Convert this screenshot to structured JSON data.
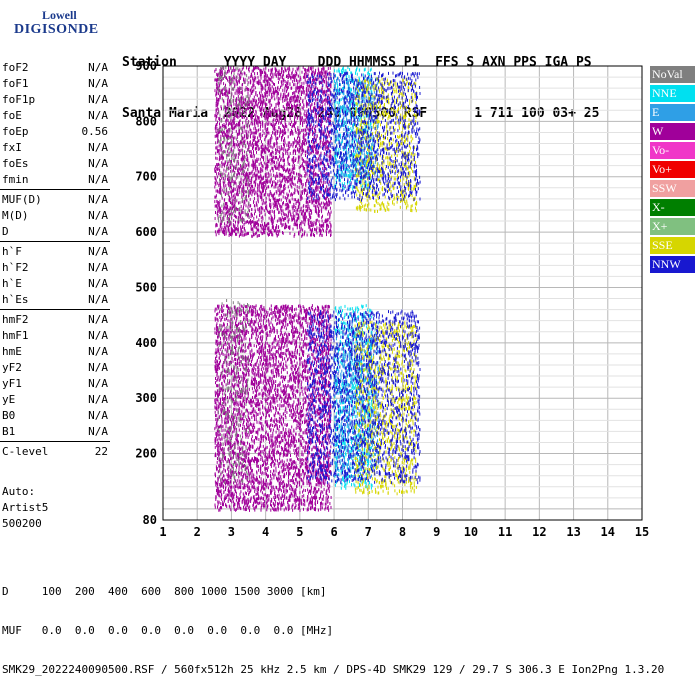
{
  "logo": {
    "line1": "Lowell",
    "line2": "DIGISONDE"
  },
  "header": {
    "line1": "Station      YYYY DAY    DDD HHMMSS P1  FFS S AXN PPS IGA PS",
    "line2": "Santa Maria  2022 Aug28  240 090500 RSF      1 711 100 03+ 25"
  },
  "params": [
    {
      "name": "foF2",
      "value": "N/A"
    },
    {
      "name": "foF1",
      "value": "N/A"
    },
    {
      "name": "foF1p",
      "value": "N/A"
    },
    {
      "name": "foE",
      "value": "N/A"
    },
    {
      "name": "foEp",
      "value": "0.56"
    },
    {
      "name": "fxI",
      "value": "N/A"
    },
    {
      "name": "foEs",
      "value": "N/A"
    },
    {
      "name": "fmin",
      "value": "N/A"
    },
    {
      "name": "MUF(D)",
      "value": "N/A"
    },
    {
      "name": "M(D)",
      "value": "N/A"
    },
    {
      "name": "D",
      "value": "N/A"
    },
    {
      "name": "h`F",
      "value": "N/A"
    },
    {
      "name": "h`F2",
      "value": "N/A"
    },
    {
      "name": "h`E",
      "value": "N/A"
    },
    {
      "name": "h`Es",
      "value": "N/A"
    },
    {
      "name": "hmF2",
      "value": "N/A"
    },
    {
      "name": "hmF1",
      "value": "N/A"
    },
    {
      "name": "hmE",
      "value": "N/A"
    },
    {
      "name": "yF2",
      "value": "N/A"
    },
    {
      "name": "yF1",
      "value": "N/A"
    },
    {
      "name": "yE",
      "value": "N/A"
    },
    {
      "name": "B0",
      "value": "N/A"
    },
    {
      "name": "B1",
      "value": "N/A"
    },
    {
      "name": "C-level",
      "value": "22"
    }
  ],
  "auto": {
    "line1": "Auto:",
    "line2": "Artist5",
    "line3": "500200"
  },
  "legend": [
    {
      "label": "NoVal",
      "color": "#7f7f7f"
    },
    {
      "label": "NNE",
      "color": "#00e0f0"
    },
    {
      "label": "E",
      "color": "#2f9fe6"
    },
    {
      "label": "W",
      "color": "#a0009a"
    },
    {
      "label": "Vo-",
      "color": "#f036c8"
    },
    {
      "label": "Vo+",
      "color": "#f00000"
    },
    {
      "label": "SSW",
      "color": "#f0a0a0"
    },
    {
      "label": "X-",
      "color": "#007f00"
    },
    {
      "label": "X+",
      "color": "#80c080"
    },
    {
      "label": "SSE",
      "color": "#d6d600"
    },
    {
      "label": "NNW",
      "color": "#1818d0"
    }
  ],
  "footer": {
    "line1": "D     100  200  400  600  800 1000 1500 3000 [km]",
    "line2": "MUF   0.0  0.0  0.0  0.0  0.0  0.0  0.0  0.0 [MHz]",
    "line3": "SMK29_2022240090500.RSF / 560fx512h 25 kHz 2.5 km / DPS-4D SMK29 129 / 29.7 S 306.3 E Ion2Png 1.3.20"
  },
  "chart_data": {
    "type": "scatter",
    "title": "",
    "xlabel": "",
    "ylabel": "",
    "xlim": [
      1,
      15
    ],
    "ylim": [
      80,
      900
    ],
    "xticks": [
      1,
      2,
      3,
      4,
      5,
      6,
      7,
      8,
      9,
      10,
      11,
      12,
      13,
      14,
      15
    ],
    "yticks": [
      80,
      200,
      300,
      400,
      500,
      600,
      700,
      800,
      900
    ],
    "grid": true,
    "legend_position": "right",
    "series": [
      {
        "name": "W",
        "color": "#a0009a",
        "bands": [
          {
            "x": [
              2.5,
              5.9
            ],
            "y": [
              100,
              470
            ]
          },
          {
            "x": [
              2.5,
              5.9
            ],
            "y": [
              595,
              900
            ]
          }
        ]
      },
      {
        "name": "NNE",
        "color": "#00e0f0",
        "bands": [
          {
            "x": [
              6.0,
              7.1
            ],
            "y": [
              140,
              470
            ]
          },
          {
            "x": [
              6.0,
              7.1
            ],
            "y": [
              680,
              900
            ]
          }
        ]
      },
      {
        "name": "E",
        "color": "#2f9fe6",
        "bands": [
          {
            "x": [
              6.0,
              7.3
            ],
            "y": [
              160,
              440
            ]
          },
          {
            "x": [
              6.0,
              7.3
            ],
            "y": [
              700,
              880
            ]
          }
        ]
      },
      {
        "name": "SSE",
        "color": "#d6d600",
        "bands": [
          {
            "x": [
              6.6,
              8.4
            ],
            "y": [
              130,
              440
            ]
          },
          {
            "x": [
              6.6,
              8.4
            ],
            "y": [
              640,
              880
            ]
          }
        ]
      },
      {
        "name": "NNW",
        "color": "#1818d0",
        "bands": [
          {
            "x": [
              5.2,
              8.5
            ],
            "y": [
              150,
              460
            ]
          },
          {
            "x": [
              5.2,
              8.5
            ],
            "y": [
              660,
              890
            ]
          }
        ]
      },
      {
        "name": "NoVal",
        "color": "#7f7f7f",
        "bands": [
          {
            "x": [
              2.6,
              3.5
            ],
            "y": [
              150,
              480
            ]
          },
          {
            "x": [
              2.6,
              3.5
            ],
            "y": [
              620,
              900
            ]
          }
        ]
      }
    ]
  }
}
